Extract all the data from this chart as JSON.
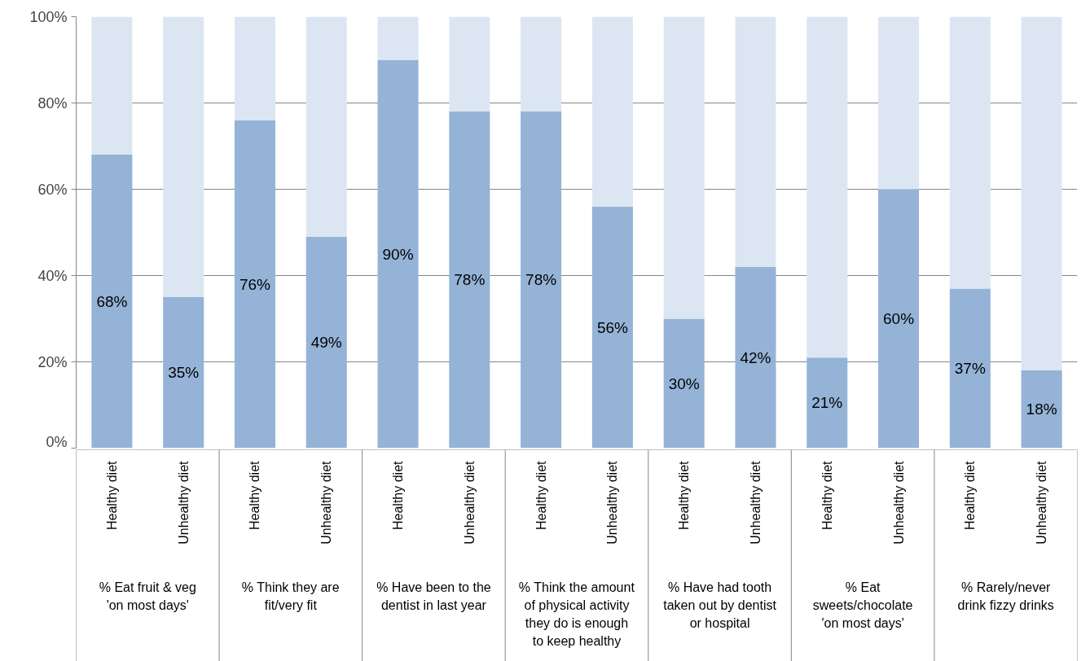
{
  "chart_data": {
    "type": "bar",
    "stacked": true,
    "categories": [
      "Healthy diet",
      "Unhealthy diet",
      "Healthy diet",
      "Unhealthy diet",
      "Healthy diet",
      "Unhealthy diet",
      "Healthy diet",
      "Unhealthy diet",
      "Healthy diet",
      "Unhealthy diet",
      "Healthy diet",
      "Unhealthy diet",
      "Healthy diet",
      "Unhealthy diet"
    ],
    "series": [
      {
        "color": "#95b3d7",
        "values": [
          68,
          35,
          76,
          49,
          90,
          78,
          78,
          56,
          30,
          42,
          21,
          60,
          37,
          18
        ],
        "value_labels": [
          "68%",
          "35%",
          "76%",
          "49%",
          "90%",
          "78%",
          "78%",
          "56%",
          "30%",
          "42%",
          "21%",
          "60%",
          "37%",
          "18%"
        ]
      },
      {
        "color": "#dce6f2",
        "values": [
          32,
          65,
          24,
          51,
          10,
          22,
          22,
          44,
          70,
          58,
          79,
          40,
          63,
          82
        ]
      }
    ],
    "ylim": [
      0,
      100
    ],
    "yticks": [
      {
        "value": 0,
        "label": "0%"
      },
      {
        "value": 20,
        "label": "20%"
      },
      {
        "value": 40,
        "label": "40%"
      },
      {
        "value": 60,
        "label": "60%"
      },
      {
        "value": 80,
        "label": "80%"
      },
      {
        "value": 100,
        "label": "100%"
      }
    ],
    "grid": "y",
    "annotations": [
      "% Eat fruit & veg\n'on most days'",
      "% Think they are\nfit/very fit",
      "% Have been to the\ndentist in last year",
      "% Think the amount\nof physical activity\nthey do is enough\nto keep healthy",
      "% Have had tooth\ntaken out by dentist\nor hospital",
      "% Eat\nsweets/chocolate\n'on most days'",
      "% Rarely/never\ndrink fizzy drinks"
    ]
  }
}
